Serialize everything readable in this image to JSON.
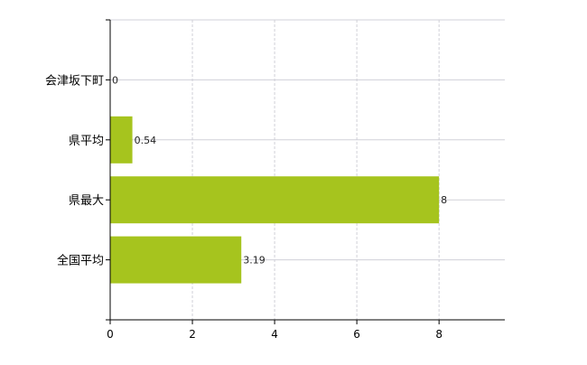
{
  "chart_data": {
    "type": "bar",
    "orientation": "horizontal",
    "categories": [
      "会津坂下町",
      "県平均",
      "県最大",
      "全国平均"
    ],
    "values": [
      0,
      0.54,
      8,
      3.19
    ],
    "value_labels": [
      "0",
      "0.54",
      "8",
      "3.19"
    ],
    "xlim": [
      0,
      9.6
    ],
    "xticks": [
      0,
      2,
      4,
      6,
      8
    ],
    "xtick_labels": [
      "0",
      "2",
      "4",
      "6",
      "8"
    ],
    "grid": true,
    "bar_color": "#a6c41e",
    "grid_color": "#d0d0d8"
  }
}
